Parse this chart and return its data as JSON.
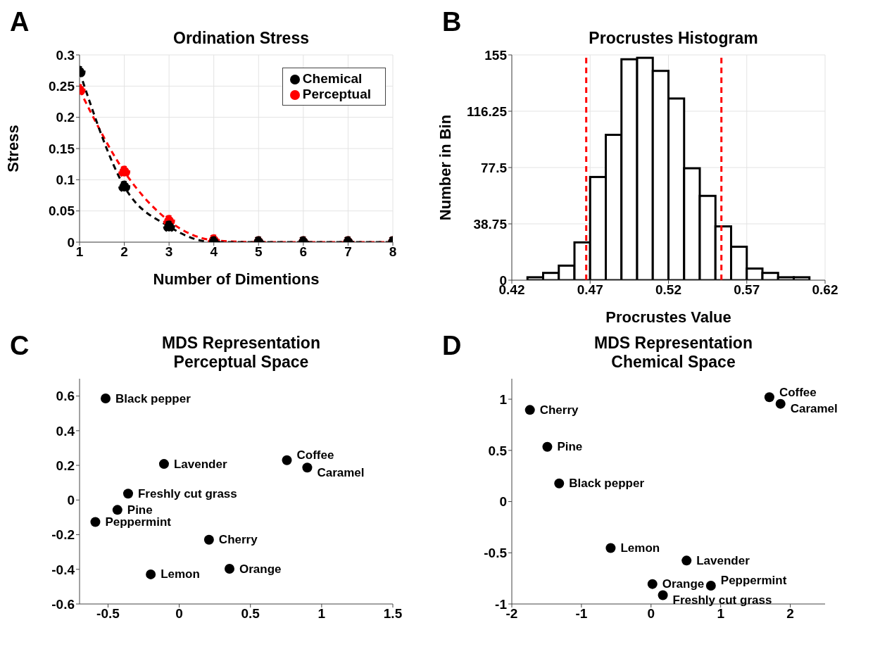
{
  "chart_data": [
    {
      "type": "line",
      "title": "Ordination Stress",
      "xlabel": "Number of Dimentions",
      "ylabel": "Stress",
      "annotations": [
        "A"
      ],
      "x": [
        1,
        2,
        3,
        4,
        5,
        6,
        7,
        8
      ],
      "series": [
        {
          "name": "Perceptual",
          "color": "#ff0000",
          "values": [
            0.244,
            0.113,
            0.034,
            0.003,
            0,
            0,
            0,
            0
          ]
        },
        {
          "name": "Chemical",
          "color": "#000000",
          "values": [
            0.273,
            0.089,
            0.025,
            0,
            0,
            0,
            0,
            0
          ]
        }
      ],
      "xlim": [
        1,
        8
      ],
      "xticks": [
        1,
        2,
        3,
        4,
        5,
        6,
        7,
        8
      ],
      "ylim": [
        0,
        0.3
      ],
      "yticks": [
        0,
        0.05,
        0.1,
        0.15,
        0.2,
        0.25,
        0.3
      ],
      "grid": true,
      "legend": "top right",
      "marker": "circle",
      "line_style": "dashed"
    },
    {
      "type": "histogram",
      "title": "Procrustes Histogram",
      "xlabel": "Procrustes Value",
      "ylabel": "Number in Bin",
      "annotations": [
        "B"
      ],
      "bins": [
        0.43,
        0.44,
        0.45,
        0.46,
        0.47,
        0.48,
        0.49,
        0.5,
        0.51,
        0.52,
        0.53,
        0.54,
        0.55,
        0.56,
        0.57,
        0.58,
        0.59,
        0.6,
        0.61
      ],
      "values": [
        2,
        5,
        10,
        26,
        71,
        100,
        152,
        153,
        144,
        125,
        77,
        58,
        37,
        23,
        8,
        5,
        2,
        2
      ],
      "color": "#ffffff",
      "xlim": [
        0.42,
        0.62
      ],
      "xticks": [
        0.42,
        0.47,
        0.52,
        0.57,
        0.62
      ],
      "ylim": [
        0,
        155
      ],
      "yticks": [
        0,
        38.75,
        77.5,
        116.25,
        155
      ],
      "ref_lines": [
        {
          "axis": "x",
          "value": 0.4675,
          "color": "#ff0000",
          "line_style": "dashed"
        },
        {
          "axis": "x",
          "value": 0.5538,
          "color": "#ff0000",
          "line_style": "dashed"
        }
      ],
      "grid": true
    },
    {
      "type": "scatter",
      "title": "MDS Representation",
      "subtitle": "Perceptual Space",
      "x": [
        -0.517,
        -0.107,
        0.756,
        0.899,
        -0.359,
        -0.434,
        -0.589,
        0.209,
        0.353,
        -0.2
      ],
      "values": [
        0.586,
        0.208,
        0.23,
        0.187,
        0.037,
        -0.057,
        -0.127,
        -0.229,
        -0.397,
        -0.429
      ],
      "color": "#000000",
      "marker": "circle",
      "annotations": [
        "C",
        {
          "text": "Black pepper",
          "x": -0.517,
          "y": 0.586
        },
        {
          "text": "Lavender",
          "x": -0.107,
          "y": 0.208
        },
        {
          "text": "Coffee",
          "x": 0.756,
          "y": 0.23
        },
        {
          "text": "Caramel",
          "x": 0.899,
          "y": 0.187
        },
        {
          "text": "Freshly cut grass",
          "x": -0.359,
          "y": 0.037
        },
        {
          "text": "Pine",
          "x": -0.434,
          "y": -0.057
        },
        {
          "text": "Peppermint",
          "x": -0.589,
          "y": -0.127
        },
        {
          "text": "Cherry",
          "x": 0.209,
          "y": -0.229
        },
        {
          "text": "Orange",
          "x": 0.353,
          "y": -0.397
        },
        {
          "text": "Lemon",
          "x": -0.2,
          "y": -0.429
        }
      ],
      "xlim": [
        -0.7,
        1.5
      ],
      "xticks": [
        -0.5,
        0,
        0.5,
        1,
        1.5
      ],
      "ylim": [
        -0.6,
        0.7
      ],
      "yticks": [
        -0.6,
        -0.4,
        -0.2,
        0,
        0.2,
        0.4,
        0.6
      ]
    },
    {
      "type": "scatter",
      "title": "MDS Representation",
      "subtitle": "Chemical Space",
      "x": [
        1.7,
        1.86,
        -1.74,
        -1.49,
        -1.32,
        -0.58,
        0.51,
        0.02,
        0.86,
        0.17
      ],
      "values": [
        1.02,
        0.955,
        0.895,
        0.535,
        0.177,
        -0.453,
        -0.576,
        -0.805,
        -0.821,
        -0.914
      ],
      "color": "#000000",
      "marker": "circle",
      "annotations": [
        "D",
        {
          "text": "Coffee",
          "x": 1.7,
          "y": 1.02
        },
        {
          "text": "Caramel",
          "x": 1.86,
          "y": 0.955
        },
        {
          "text": "Cherry",
          "x": -1.74,
          "y": 0.895
        },
        {
          "text": "Pine",
          "x": -1.49,
          "y": 0.535
        },
        {
          "text": "Black pepper",
          "x": -1.32,
          "y": 0.177
        },
        {
          "text": "Lemon",
          "x": -0.58,
          "y": -0.453
        },
        {
          "text": "Lavender",
          "x": 0.51,
          "y": -0.576
        },
        {
          "text": "Orange",
          "x": 0.02,
          "y": -0.805
        },
        {
          "text": "Peppermint",
          "x": 0.86,
          "y": -0.821
        },
        {
          "text": "Freshly cut grass",
          "x": 0.17,
          "y": -0.914
        }
      ],
      "xlim": [
        -2,
        2.5
      ],
      "xticks": [
        -2,
        -1,
        0,
        1,
        2
      ],
      "ylim": [
        -1,
        1.2
      ],
      "yticks": [
        -1,
        -0.5,
        0,
        0.5,
        1
      ]
    }
  ]
}
